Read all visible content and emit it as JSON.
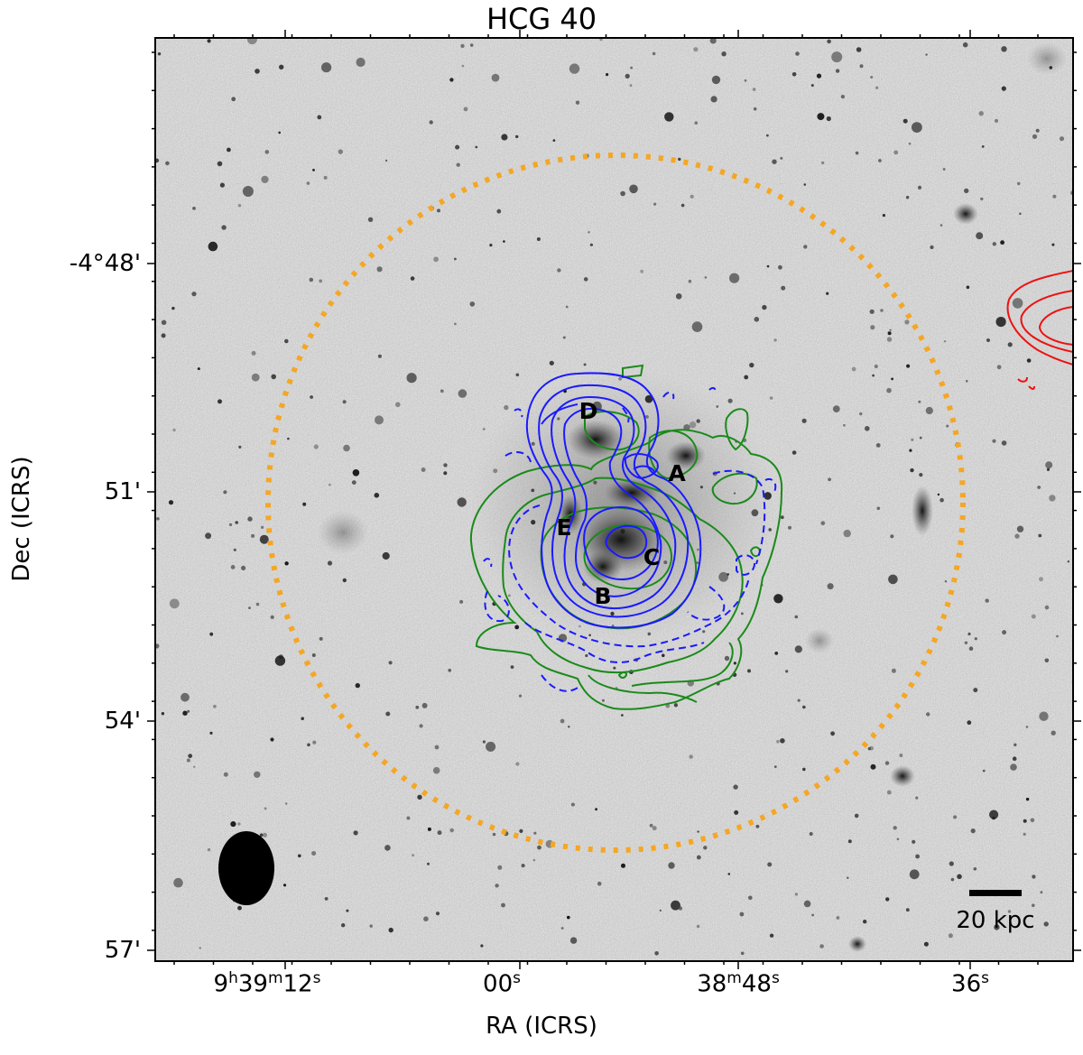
{
  "title": "HCG 40",
  "axes": {
    "xlabel": "RA (ICRS)",
    "ylabel": "Dec (ICRS)"
  },
  "x_ticks": [
    {
      "h": "9",
      "m": "39",
      "s": "12"
    },
    {
      "s": "00"
    },
    {
      "m": "38",
      "s": "48"
    },
    {
      "s": "36"
    }
  ],
  "y_ticks": [
    "-4°48'",
    "51'",
    "54'",
    "57'"
  ],
  "galaxies": [
    "A",
    "B",
    "C",
    "D",
    "E"
  ],
  "scale_bar": "20 kpc",
  "colors": {
    "hi_contours": "#1a1aff",
    "hi_negative": "#1a1aff",
    "green_contours": "#1a8a1a",
    "red_contours": "#ee1111",
    "search_circle": "#f5a623",
    "beam": "#000000",
    "sky": "#d0d0d0"
  }
}
